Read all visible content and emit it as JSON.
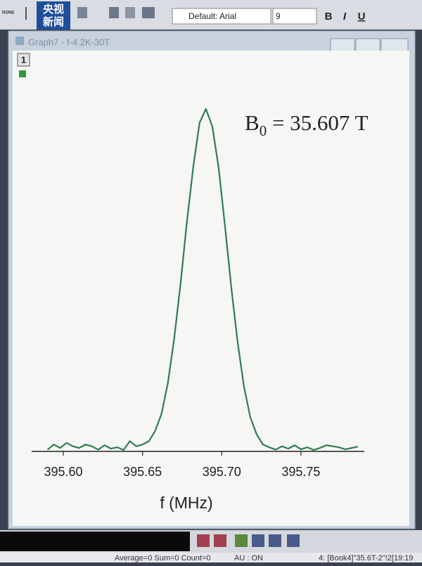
{
  "toolbar": {
    "none_label": "NONE",
    "logo": [
      "央视",
      "新闻"
    ],
    "font_name": "Default: Arial",
    "font_size": "9",
    "bold": "B",
    "italic": "I",
    "underline": "U"
  },
  "window": {
    "title": "Graph7 - f-4.2K-30T",
    "layer": "1"
  },
  "status_bar": {
    "stats": "Average=0 Sum=0 Count=0",
    "au": "AU : ON",
    "selection": "4: [Book4]\"35.6T-2\"!2[19:19"
  },
  "chart_data": {
    "type": "line",
    "annotation": {
      "base": "B",
      "subscript": "0",
      "text": " = 35.607 T"
    },
    "x_label": "f (MHz)",
    "x": [
      395.59,
      395.594,
      395.598,
      395.602,
      395.606,
      395.61,
      395.614,
      395.618,
      395.622,
      395.626,
      395.63,
      395.634,
      395.638,
      395.642,
      395.646,
      395.65,
      395.654,
      395.658,
      395.662,
      395.666,
      395.67,
      395.674,
      395.678,
      395.682,
      395.686,
      395.69,
      395.694,
      395.698,
      395.702,
      395.706,
      395.71,
      395.714,
      395.718,
      395.722,
      395.726,
      395.73,
      395.734,
      395.738,
      395.742,
      395.746,
      395.75,
      395.754,
      395.758,
      395.762,
      395.766,
      395.77,
      395.774,
      395.778,
      395.782,
      395.786
    ],
    "values": [
      0.005,
      0.02,
      0.01,
      0.025,
      0.015,
      0.01,
      0.02,
      0.015,
      0.005,
      0.018,
      0.008,
      0.012,
      0.004,
      0.03,
      0.015,
      0.02,
      0.03,
      0.06,
      0.11,
      0.2,
      0.33,
      0.49,
      0.67,
      0.83,
      0.96,
      1.0,
      0.95,
      0.83,
      0.66,
      0.48,
      0.32,
      0.19,
      0.1,
      0.05,
      0.02,
      0.012,
      0.005,
      0.015,
      0.008,
      0.018,
      0.006,
      0.012,
      0.004,
      0.01,
      0.018,
      0.015,
      0.012,
      0.006,
      0.01,
      0.014
    ],
    "color": "#2f7d52",
    "xlim": [
      395.58,
      395.79
    ],
    "xticks": [
      {
        "value": 395.6,
        "label": "395.60"
      },
      {
        "value": 395.65,
        "label": "395.65"
      },
      {
        "value": 395.7,
        "label": "395.70"
      },
      {
        "value": 395.75,
        "label": "395.75"
      }
    ],
    "ylim": [
      0,
      1
    ]
  }
}
